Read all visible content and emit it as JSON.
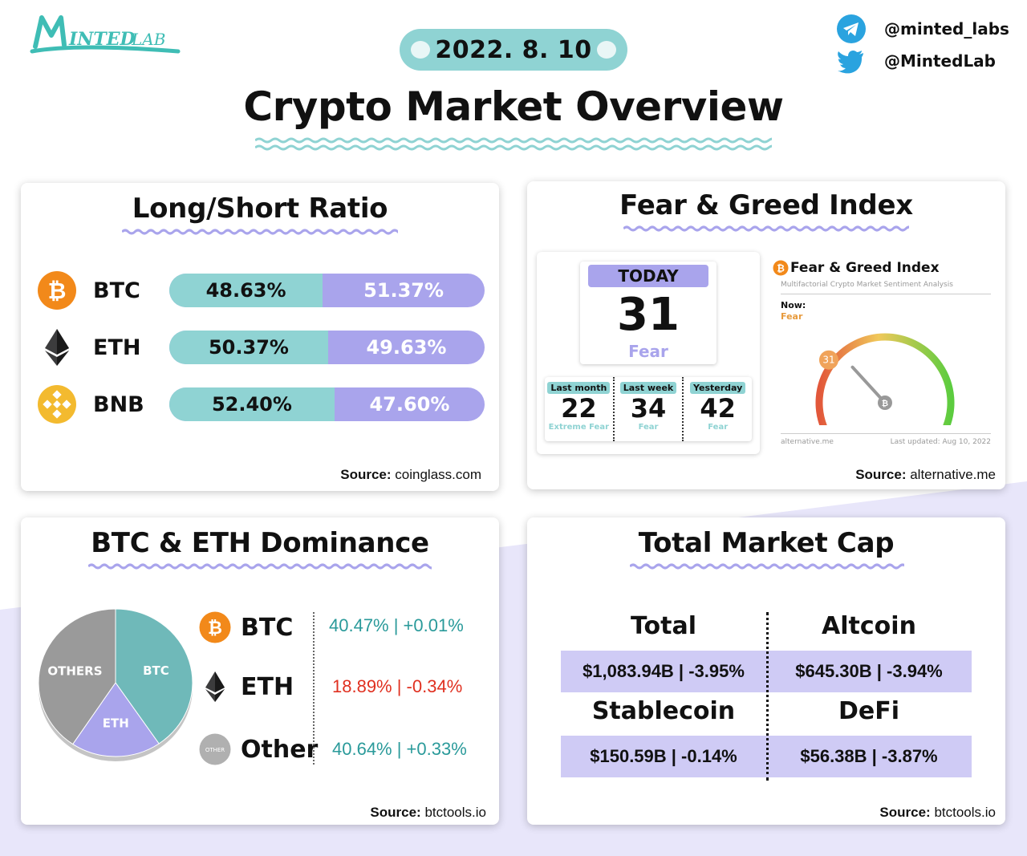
{
  "header": {
    "logo_text": "MINTEDLAB",
    "date": "2022. 8. 10",
    "title": "Crypto Market Overview",
    "social": [
      {
        "icon": "telegram-icon",
        "handle": "@minted_labs"
      },
      {
        "icon": "twitter-icon",
        "handle": "@MintedLab"
      }
    ]
  },
  "colors": {
    "teal": "#8fd3d3",
    "purple": "#a9a4ec",
    "lavender_bg": "#e8e6fa",
    "red": "#e03020",
    "teal_text": "#2a9a9a"
  },
  "long_short": {
    "title": "Long/Short Ratio",
    "rows": [
      {
        "coin": "BTC",
        "icon": "bitcoin-icon",
        "long": "48.63%",
        "short": "51.37%",
        "long_fraction": 0.4863
      },
      {
        "coin": "ETH",
        "icon": "ethereum-icon",
        "long": "50.37%",
        "short": "49.63%",
        "long_fraction": 0.5037
      },
      {
        "coin": "BNB",
        "icon": "bnb-icon",
        "long": "52.40%",
        "short": "47.60%",
        "long_fraction": 0.524
      }
    ],
    "source_label": "Source:",
    "source": "coinglass.com"
  },
  "fear_greed": {
    "title": "Fear & Greed Index",
    "today_label": "TODAY",
    "today_value": "31",
    "today_class": "Fear",
    "history": [
      {
        "label": "Last month",
        "value": "22",
        "class": "Extreme Fear"
      },
      {
        "label": "Last week",
        "value": "34",
        "class": "Fear"
      },
      {
        "label": "Yesterday",
        "value": "42",
        "class": "Fear"
      }
    ],
    "widget": {
      "title": "Fear & Greed Index",
      "subtitle": "Multifactorial Crypto Market Sentiment Analysis",
      "now_label": "Now:",
      "now_value": "Fear",
      "gauge_value": 31,
      "gauge_badge": "31",
      "footer_left": "alternative.me",
      "footer_right": "Last updated: Aug 10, 2022"
    },
    "source_label": "Source:",
    "source": "alternative.me"
  },
  "dominance": {
    "title": "BTC & ETH Dominance",
    "pie_labels": {
      "others": "OTHERS",
      "btc": "BTC",
      "eth": "ETH"
    },
    "rows": [
      {
        "coin": "BTC",
        "icon": "bitcoin-icon",
        "value": "40.47% | +0.01%",
        "color": "#2a9a9a"
      },
      {
        "coin": "ETH",
        "icon": "ethereum-icon",
        "value": "18.89% | -0.34%",
        "color": "#e03020"
      },
      {
        "coin": "Other",
        "icon": "other-coin-icon",
        "icon_text": "OTHER",
        "value": "40.64% | +0.33%",
        "color": "#2a9a9a"
      }
    ],
    "source_label": "Source:",
    "source": "btctools.io"
  },
  "chart_data": {
    "type": "pie",
    "categories": [
      "BTC",
      "ETH",
      "OTHERS"
    ],
    "values": [
      40.47,
      18.89,
      40.64
    ],
    "title": "",
    "colors": [
      "#6fb9b9",
      "#a9a4ec",
      "#9a9a9a"
    ]
  },
  "market_cap": {
    "title": "Total Market Cap",
    "cells": [
      {
        "header": "Total",
        "value": "$1,083.94B | -3.95%"
      },
      {
        "header": "Altcoin",
        "value": "$645.30B | -3.94%"
      },
      {
        "header": "Stablecoin",
        "value": "$150.59B | -0.14%"
      },
      {
        "header": "DeFi",
        "value": "$56.38B | -3.87%"
      }
    ],
    "source_label": "Source:",
    "source": "btctools.io"
  }
}
